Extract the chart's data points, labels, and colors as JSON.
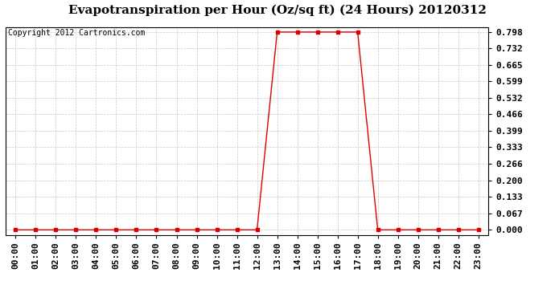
{
  "title": "Evapotranspiration per Hour (Oz/sq ft) (24 Hours) 20120312",
  "copyright": "Copyright 2012 Cartronics.com",
  "x_labels": [
    "00:00",
    "01:00",
    "02:00",
    "03:00",
    "04:00",
    "05:00",
    "06:00",
    "07:00",
    "08:00",
    "09:00",
    "10:00",
    "11:00",
    "12:00",
    "13:00",
    "14:00",
    "15:00",
    "16:00",
    "17:00",
    "18:00",
    "19:00",
    "20:00",
    "21:00",
    "22:00",
    "23:00"
  ],
  "x_values": [
    0,
    1,
    2,
    3,
    4,
    5,
    6,
    7,
    8,
    9,
    10,
    11,
    12,
    13,
    14,
    15,
    16,
    17,
    18,
    19,
    20,
    21,
    22,
    23
  ],
  "y_values": [
    0.0,
    0.0,
    0.0,
    0.0,
    0.0,
    0.0,
    0.0,
    0.0,
    0.0,
    0.0,
    0.0,
    0.0,
    0.0,
    0.798,
    0.798,
    0.798,
    0.798,
    0.798,
    0.0,
    0.0,
    0.0,
    0.0,
    0.0,
    0.0
  ],
  "y_ticks": [
    0.0,
    0.067,
    0.133,
    0.2,
    0.266,
    0.333,
    0.399,
    0.466,
    0.532,
    0.599,
    0.665,
    0.732,
    0.798
  ],
  "y_max": 0.798,
  "line_color": "#dd0000",
  "marker": "s",
  "marker_size": 2.5,
  "grid_color": "#c8c8c8",
  "bg_color": "#ffffff",
  "border_color": "#000000",
  "title_fontsize": 11,
  "copyright_fontsize": 7,
  "tick_fontsize": 8,
  "fig_width": 6.9,
  "fig_height": 3.75
}
